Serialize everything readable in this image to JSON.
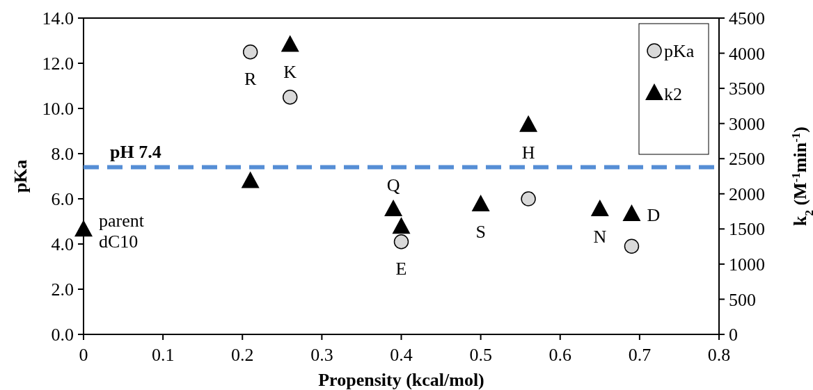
{
  "chart_data": {
    "type": "scatter",
    "xlabel": "Propensity (kcal/mol)",
    "ylabel": "pKa",
    "y2label": "k$_{2}$ (M$^{-1}$min$^{-1}$)",
    "xlim": [
      0,
      0.8
    ],
    "xticks": [
      {
        "value": 0,
        "label": "0"
      },
      0.1,
      0.2,
      0.3,
      0.4,
      0.5,
      0.6,
      0.7,
      0.8
    ],
    "ylim": [
      0,
      14
    ],
    "yticks": [
      {
        "value": 0,
        "label": "0.0"
      },
      {
        "value": 2,
        "label": "2.0"
      },
      {
        "value": 4,
        "label": "4.0"
      },
      {
        "value": 6,
        "label": "6.0"
      },
      {
        "value": 8,
        "label": "8.0"
      },
      {
        "value": 10,
        "label": "10.0"
      },
      {
        "value": 12,
        "label": "12.0"
      },
      {
        "value": 14,
        "label": "14.0"
      }
    ],
    "y2lim": [
      0,
      4500
    ],
    "y2ticks": [
      0,
      500,
      1000,
      1500,
      2000,
      2500,
      3000,
      3500,
      4000,
      4500
    ],
    "grid": false,
    "legend": "top right",
    "series": [
      {
        "name": "pKa",
        "color": "#d9d9d9",
        "marker": "circle",
        "x": [
          0.21,
          0.26,
          0.4,
          0.56,
          0.69
        ],
        "values": [
          12.5,
          10.5,
          4.1,
          6.0,
          3.9
        ]
      },
      {
        "name": "k2",
        "color": "#000000",
        "marker": "triangle",
        "axis": "y2",
        "x": [
          0,
          0.21,
          0.26,
          0.39,
          0.4,
          0.5,
          0.56,
          0.65,
          0.69
        ],
        "values": [
          1480,
          2170,
          4110,
          1770,
          1520,
          1840,
          2970,
          1770,
          1700
        ]
      }
    ],
    "ref_lines": [
      {
        "axis": "y",
        "value": 7.4,
        "label": "pH 7.4",
        "color": "#558ed5",
        "line_style": "dashed"
      }
    ],
    "annotations": [
      {
        "text": "R",
        "x": 0.21,
        "y": 12.5
      },
      {
        "text": "K",
        "x": 0.26,
        "y": 12.79
      },
      {
        "text": "Q",
        "x": 0.39,
        "y": 5.51
      },
      {
        "text": "E",
        "x": 0.4,
        "y": 4.1
      },
      {
        "text": "S",
        "x": 0.5,
        "y": 5.72
      },
      {
        "text": "H",
        "x": 0.56,
        "y": 9.24
      },
      {
        "text": "N",
        "x": 0.65,
        "y": 5.51
      },
      {
        "text": "D",
        "x": 0.69,
        "y": 5.29
      },
      {
        "text": "parent\ndC10",
        "x": 0,
        "y": 4.6
      }
    ]
  }
}
